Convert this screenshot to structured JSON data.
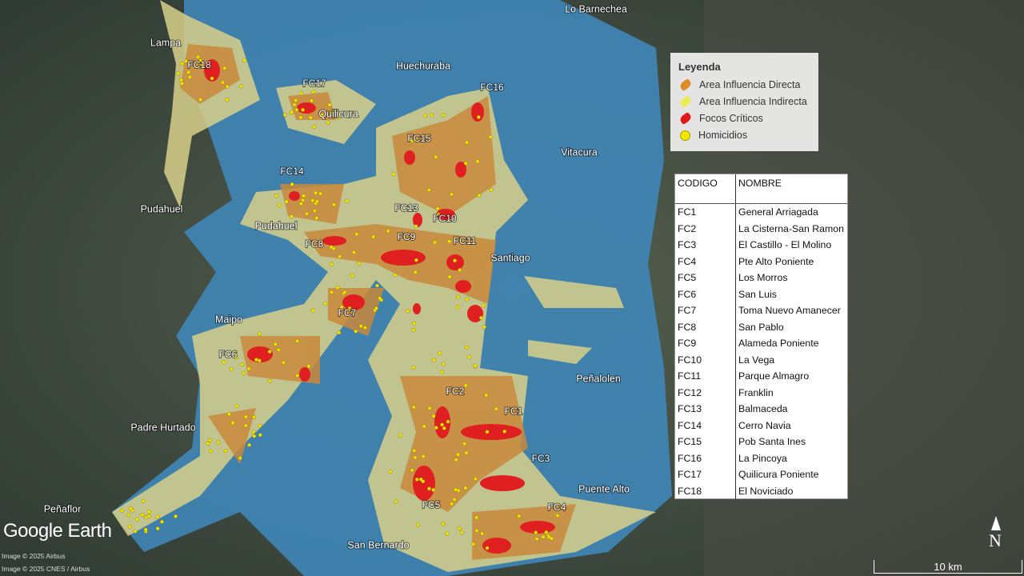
{
  "places": [
    "Lo Barnechea",
    "Lampa",
    "Huechuraba",
    "Quilicura",
    "Vitacura",
    "Pudahuel",
    "Pudahuel",
    "Santiago",
    "Maipo",
    "Peñalolen",
    "Padre Hurtado",
    "Puente Alto",
    "Peñaflor",
    "San Bernardo"
  ],
  "focus_labels": [
    "FC18",
    "FC17",
    "FC16",
    "FC15",
    "FC14",
    "FC13",
    "FC10",
    "FC9",
    "FC11",
    "FC8",
    "FC7",
    "FC6",
    "FC2",
    "FC1",
    "FC3",
    "FC5",
    "FC4"
  ],
  "legend": {
    "title": "Leyenda",
    "items": [
      "Area Influencia Directa",
      "Area Influencia Indirecta",
      "Focos Críticos",
      "Homicidios"
    ]
  },
  "table": {
    "header": [
      "CODIGO",
      "NOMBRE"
    ],
    "rows": [
      [
        "FC1",
        "General Arriagada"
      ],
      [
        "FC2",
        "La Cisterna-San Ramon"
      ],
      [
        "FC3",
        "El Castillo  - El Molino"
      ],
      [
        "FC4",
        "Pte Alto Poniente"
      ],
      [
        "FC5",
        "Los Morros"
      ],
      [
        "FC6",
        "San Luis"
      ],
      [
        "FC7",
        "Toma Nuevo Amanecer"
      ],
      [
        "FC8",
        "San Pablo"
      ],
      [
        "FC9",
        "Alameda Poniente"
      ],
      [
        "FC10",
        "La Vega"
      ],
      [
        "FC11",
        "Parque Almagro"
      ],
      [
        "FC12",
        "Franklin"
      ],
      [
        "FC13",
        "Balmaceda"
      ],
      [
        "FC14",
        "Cerro Navia"
      ],
      [
        "FC15",
        "Pob Santa Ines"
      ],
      [
        "FC16",
        "La Pincoya"
      ],
      [
        "FC17",
        "Quilicura Poniente"
      ],
      [
        "FC18",
        "El Noviciado"
      ]
    ]
  },
  "footer": {
    "brand": "Google Earth",
    "credits": [
      "Image © 2025 Airbus",
      "Image © 2025 CNES / Airbus"
    ],
    "scale": "10 km",
    "north": "N"
  }
}
